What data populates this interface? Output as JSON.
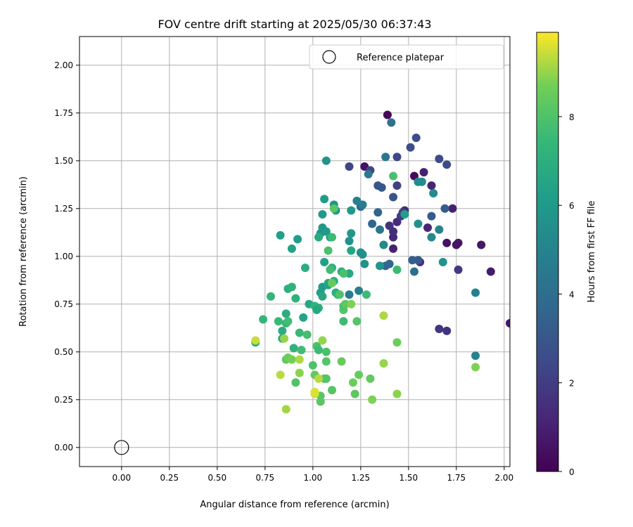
{
  "chart_data": {
    "type": "scatter",
    "title": "FOV centre drift starting at 2025/05/30 06:37:43",
    "xlabel": "Angular distance from reference (arcmin)",
    "ylabel": "Rotation from reference (arcmin)",
    "xlim": [
      -0.22,
      2.03
    ],
    "ylim": [
      -0.1,
      2.15
    ],
    "xticks": [
      "0.00",
      "0.25",
      "0.50",
      "0.75",
      "1.00",
      "1.25",
      "1.50",
      "1.75",
      "2.00"
    ],
    "yticks": [
      "0.00",
      "0.25",
      "0.50",
      "0.75",
      "1.00",
      "1.25",
      "1.50",
      "1.75",
      "2.00"
    ],
    "grid": true,
    "legend": {
      "placement": "top-right",
      "label": "Reference platepar"
    },
    "reference_point": {
      "x": 0.0,
      "y": 0.0
    },
    "colorbar": {
      "label": "Hours from first FF file",
      "range": [
        0,
        9.9
      ],
      "ticks": [
        "0",
        "2",
        "4",
        "6",
        "8"
      ],
      "colormap": "viridis"
    },
    "points": [
      [
        1.39,
        1.74,
        0.2
      ],
      [
        1.53,
        1.42,
        0.3
      ],
      [
        1.27,
        1.47,
        0.5
      ],
      [
        1.7,
        1.07,
        0.5
      ],
      [
        1.76,
        1.07,
        0.6
      ],
      [
        1.75,
        1.06,
        0.6
      ],
      [
        1.88,
        1.06,
        0.7
      ],
      [
        1.93,
        0.92,
        0.8
      ],
      [
        2.03,
        0.65,
        0.7
      ],
      [
        1.73,
        1.25,
        1.0
      ],
      [
        1.42,
        1.04,
        1.0
      ],
      [
        1.58,
        1.44,
        1.0
      ],
      [
        1.62,
        1.37,
        1.1
      ],
      [
        1.6,
        1.15,
        1.2
      ],
      [
        1.42,
        1.1,
        1.3
      ],
      [
        1.44,
        1.18,
        1.4
      ],
      [
        1.48,
        1.24,
        1.4
      ],
      [
        1.42,
        1.13,
        1.5
      ],
      [
        1.4,
        1.16,
        1.6
      ],
      [
        1.56,
        0.97,
        1.6
      ],
      [
        1.7,
        0.61,
        1.6
      ],
      [
        1.66,
        0.62,
        1.8
      ],
      [
        1.76,
        0.93,
        1.9
      ],
      [
        1.46,
        1.21,
        2.0
      ],
      [
        1.47,
        1.23,
        2.1
      ],
      [
        1.44,
        1.37,
        2.2
      ],
      [
        1.19,
        1.47,
        2.3
      ],
      [
        1.3,
        1.45,
        2.3
      ],
      [
        1.44,
        1.52,
        2.4
      ],
      [
        1.66,
        1.51,
        2.5
      ],
      [
        1.7,
        1.48,
        2.5
      ],
      [
        1.51,
        1.57,
        2.6
      ],
      [
        1.54,
        1.62,
        2.7
      ],
      [
        1.42,
        1.31,
        2.9
      ],
      [
        1.36,
        1.36,
        3.0
      ],
      [
        1.34,
        1.37,
        3.0
      ],
      [
        1.55,
        0.98,
        3.1
      ],
      [
        1.62,
        1.21,
        3.1
      ],
      [
        1.69,
        1.25,
        3.2
      ],
      [
        1.52,
        0.98,
        3.3
      ],
      [
        1.53,
        0.92,
        4.0
      ],
      [
        1.38,
        0.95,
        3.6
      ],
      [
        1.31,
        1.17,
        3.6
      ],
      [
        1.35,
        1.14,
        4.4
      ],
      [
        1.34,
        1.23,
        3.6
      ],
      [
        1.4,
        0.96,
        3.7
      ],
      [
        1.41,
        1.7,
        4.2
      ],
      [
        1.38,
        1.52,
        4.4
      ],
      [
        1.29,
        1.43,
        4.5
      ],
      [
        1.25,
        1.26,
        3.9
      ],
      [
        1.26,
        1.27,
        4.6
      ],
      [
        1.24,
        0.82,
        4.8
      ],
      [
        1.23,
        1.29,
        4.9
      ],
      [
        1.19,
        0.8,
        4.6
      ],
      [
        1.85,
        0.81,
        4.9
      ],
      [
        1.85,
        0.48,
        5.0
      ],
      [
        1.66,
        1.14,
        5.0
      ],
      [
        1.62,
        1.1,
        5.2
      ],
      [
        1.55,
        1.39,
        5.3
      ],
      [
        1.57,
        1.39,
        5.4
      ],
      [
        1.55,
        1.17,
        5.6
      ],
      [
        1.68,
        0.97,
        5.7
      ],
      [
        1.63,
        1.33,
        5.3
      ],
      [
        1.37,
        1.06,
        5.4
      ],
      [
        1.35,
        0.95,
        5.8
      ],
      [
        1.27,
        0.96,
        5.6
      ],
      [
        1.25,
        1.02,
        5.6
      ],
      [
        1.26,
        1.01,
        5.5
      ],
      [
        1.2,
        1.12,
        5.9
      ],
      [
        1.19,
        1.08,
        5.7
      ],
      [
        1.2,
        1.24,
        6.0
      ],
      [
        1.07,
        1.5,
        5.7
      ],
      [
        1.12,
        1.24,
        5.6
      ],
      [
        1.11,
        1.27,
        5.8
      ],
      [
        1.06,
        1.3,
        6.1
      ],
      [
        1.05,
        1.22,
        6.0
      ],
      [
        1.04,
        1.12,
        5.8
      ],
      [
        1.05,
        1.15,
        5.9
      ],
      [
        1.07,
        1.13,
        6.0
      ],
      [
        1.06,
        0.97,
        6.3
      ],
      [
        1.05,
        0.84,
        6.1
      ],
      [
        1.04,
        0.81,
        6.3
      ],
      [
        1.05,
        0.79,
        6.6
      ],
      [
        1.08,
        0.86,
        6.8
      ],
      [
        1.11,
        0.87,
        6.9
      ],
      [
        1.12,
        0.81,
        6.8
      ],
      [
        1.15,
        0.92,
        6.9
      ],
      [
        1.19,
        0.91,
        6.7
      ],
      [
        1.2,
        1.03,
        6.6
      ],
      [
        1.09,
        1.1,
        6.5
      ],
      [
        1.1,
        0.94,
        7.1
      ],
      [
        1.08,
        0.85,
        6.4
      ],
      [
        1.03,
        1.1,
        6.8
      ],
      [
        0.92,
        1.09,
        6.2
      ],
      [
        0.89,
        1.04,
        6.4
      ],
      [
        0.83,
        1.11,
        6.2
      ],
      [
        0.96,
        0.94,
        7.0
      ],
      [
        0.95,
        0.68,
        6.5
      ],
      [
        0.98,
        0.75,
        6.6
      ],
      [
        1.01,
        0.74,
        7.3
      ],
      [
        1.03,
        0.73,
        7.0
      ],
      [
        1.02,
        0.72,
        6.7
      ],
      [
        0.91,
        0.78,
        7.1
      ],
      [
        0.87,
        0.83,
        7.0
      ],
      [
        0.89,
        0.84,
        7.2
      ],
      [
        0.78,
        0.79,
        7.3
      ],
      [
        0.74,
        0.67,
        7.4
      ],
      [
        0.84,
        0.61,
        6.9
      ],
      [
        0.82,
        0.66,
        7.5
      ],
      [
        0.84,
        0.57,
        6.6
      ],
      [
        0.86,
        0.7,
        6.9
      ],
      [
        0.86,
        0.65,
        7.4
      ],
      [
        0.87,
        0.66,
        7.7
      ],
      [
        0.7,
        0.55,
        6.7
      ],
      [
        0.9,
        0.52,
        7.2
      ],
      [
        0.94,
        0.51,
        7.7
      ],
      [
        0.93,
        0.6,
        7.5
      ],
      [
        0.97,
        0.59,
        7.8
      ],
      [
        1.02,
        0.53,
        7.9
      ],
      [
        1.03,
        0.51,
        7.6
      ],
      [
        1.07,
        0.5,
        7.9
      ],
      [
        1.07,
        0.45,
        8.1
      ],
      [
        1.06,
        0.36,
        8.0
      ],
      [
        1.07,
        0.36,
        8.1
      ],
      [
        1.04,
        0.27,
        8.2
      ],
      [
        1.04,
        0.24,
        8.2
      ],
      [
        1.0,
        0.43,
        8.0
      ],
      [
        1.01,
        0.38,
        8.4
      ],
      [
        0.91,
        0.34,
        8.0
      ],
      [
        0.86,
        0.46,
        8.3
      ],
      [
        0.87,
        0.47,
        8.6
      ],
      [
        0.89,
        0.46,
        8.7
      ],
      [
        0.85,
        0.57,
        9.0
      ],
      [
        0.93,
        0.39,
        8.9
      ],
      [
        0.93,
        0.46,
        9.2
      ],
      [
        1.03,
        0.36,
        9.3
      ],
      [
        1.05,
        0.56,
        9.0
      ],
      [
        1.01,
        0.28,
        9.5
      ],
      [
        1.01,
        0.29,
        9.6
      ],
      [
        0.7,
        0.56,
        9.4
      ],
      [
        0.83,
        0.38,
        9.3
      ],
      [
        0.86,
        0.2,
        9.1
      ],
      [
        1.1,
        0.3,
        8.1
      ],
      [
        1.15,
        0.45,
        8.5
      ],
      [
        1.21,
        0.34,
        8.6
      ],
      [
        1.22,
        0.28,
        8.3
      ],
      [
        1.24,
        0.38,
        8.5
      ],
      [
        1.3,
        0.36,
        8.4
      ],
      [
        1.31,
        0.25,
        8.8
      ],
      [
        1.37,
        0.44,
        9.0
      ],
      [
        1.44,
        0.28,
        8.9
      ],
      [
        1.37,
        0.69,
        9.2
      ],
      [
        1.16,
        0.72,
        8.1
      ],
      [
        1.16,
        0.74,
        7.9
      ],
      [
        1.17,
        0.75,
        8.3
      ],
      [
        1.2,
        0.75,
        8.8
      ],
      [
        1.23,
        0.66,
        8.1
      ],
      [
        1.16,
        0.66,
        7.6
      ],
      [
        1.13,
        0.8,
        7.3
      ],
      [
        1.09,
        0.93,
        7.7
      ],
      [
        1.1,
        0.86,
        8.5
      ],
      [
        1.08,
        1.03,
        7.9
      ],
      [
        1.1,
        1.1,
        7.6
      ],
      [
        1.11,
        1.25,
        8.2
      ],
      [
        1.14,
        0.8,
        8.0
      ],
      [
        1.16,
        0.91,
        7.9
      ],
      [
        1.28,
        0.8,
        7.6
      ],
      [
        1.44,
        0.55,
        8.6
      ],
      [
        1.44,
        0.93,
        7.6
      ],
      [
        1.42,
        1.42,
        7.9
      ],
      [
        1.48,
        1.22,
        6.2
      ],
      [
        1.85,
        0.42,
        8.8
      ]
    ]
  }
}
